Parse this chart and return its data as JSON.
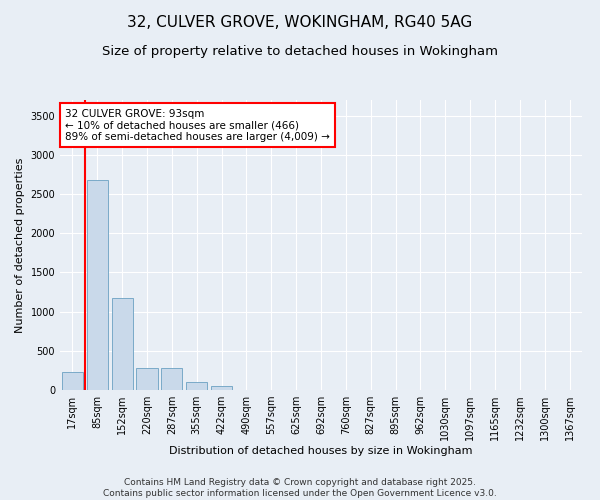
{
  "title_line1": "32, CULVER GROVE, WOKINGHAM, RG40 5AG",
  "title_line2": "Size of property relative to detached houses in Wokingham",
  "xlabel": "Distribution of detached houses by size in Wokingham",
  "ylabel": "Number of detached properties",
  "bar_color": "#c9d9ea",
  "bar_edge_color": "#7aaac8",
  "vline_color": "red",
  "annotation_text_line1": "32 CULVER GROVE: 93sqm",
  "annotation_text_line2": "← 10% of detached houses are smaller (466)",
  "annotation_text_line3": "89% of semi-detached houses are larger (4,009) →",
  "categories": [
    "17sqm",
    "85sqm",
    "152sqm",
    "220sqm",
    "287sqm",
    "355sqm",
    "422sqm",
    "490sqm",
    "557sqm",
    "625sqm",
    "692sqm",
    "760sqm",
    "827sqm",
    "895sqm",
    "962sqm",
    "1030sqm",
    "1097sqm",
    "1165sqm",
    "1232sqm",
    "1300sqm",
    "1367sqm"
  ],
  "values": [
    230,
    2680,
    1170,
    285,
    285,
    105,
    45,
    0,
    0,
    0,
    0,
    0,
    0,
    0,
    0,
    0,
    0,
    0,
    0,
    0,
    0
  ],
  "ylim": [
    0,
    3700
  ],
  "yticks": [
    0,
    500,
    1000,
    1500,
    2000,
    2500,
    3000,
    3500
  ],
  "background_color": "#e8eef5",
  "plot_bg_color": "#e8eef5",
  "footer_text": "Contains HM Land Registry data © Crown copyright and database right 2025.\nContains public sector information licensed under the Open Government Licence v3.0.",
  "title_fontsize": 11,
  "subtitle_fontsize": 9.5,
  "label_fontsize": 8,
  "tick_fontsize": 7,
  "annotation_fontsize": 7.5,
  "footer_fontsize": 6.5,
  "vline_pos": 1.0
}
